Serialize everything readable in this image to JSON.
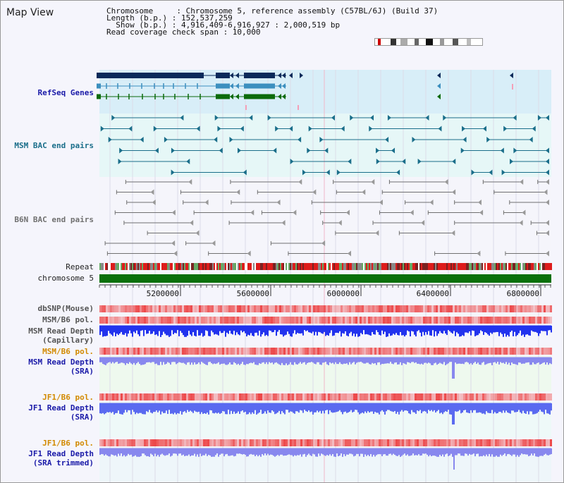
{
  "panel": {
    "title": "Map View"
  },
  "info": {
    "line1": "Chromosome     : Chromosome 5, reference assembly (C57BL/6J) (Build 37)",
    "line2": "Length (b.p.) : 152,537,259",
    "line3": "  Show (b.p.) : 4,916,409-6,916,927 : 2,000,519 bp",
    "line4": "Read coverage check span : 10,000"
  },
  "tracks": {
    "refseq": "RefSeq Genes",
    "msm_bac": "MSM BAC end pairs",
    "b6n_bac": "B6N BAC end pairs",
    "repeat": "Repeat",
    "chromosome": "chromosome 5",
    "dbsnp": "dbSNP(Mouse)",
    "msm_b6_pol_1": "MSM/B6 pol.",
    "msm_read_depth_cap_1": "MSM Read Depth",
    "msm_read_depth_cap_2": "(Capillary)",
    "msm_b6_pol_2": "MSM/B6 pol.",
    "msm_read_depth_sra_1": "MSM Read Depth",
    "msm_read_depth_sra_2": "(SRA)",
    "jf1_b6_pol_1": "JF1/B6 pol.",
    "jf1_read_depth_sra_1": "JF1 Read Depth",
    "jf1_read_depth_sra_2": "(SRA)",
    "jf1_b6_pol_2": "JF1/B6 pol.",
    "jf1_read_depth_trim_1": "JF1 Read Depth",
    "jf1_read_depth_trim_2": "(SRA trimmed)"
  },
  "axis": {
    "ticks": [
      "5200000",
      "5600000",
      "6000000",
      "6400000",
      "6800000"
    ]
  },
  "colors": {
    "refseq_bg": "#d8eef8",
    "bac_bg": "#e6f7f7",
    "gene_dark": "#0a2a5a",
    "gene_mid": "#3c8fbf",
    "gene_green": "#0b6b0b",
    "msm_feature": "#1a6e8a",
    "b6n_feature": "#707070",
    "chromosome": "#0a700a",
    "depth_capillary": "#2233ee",
    "depth_sra": "#8888ee",
    "pol_label": "#d28a00",
    "label_blue": "#1a1aa8",
    "label_teal": "#1a6e8a",
    "label_gray": "#707070"
  }
}
